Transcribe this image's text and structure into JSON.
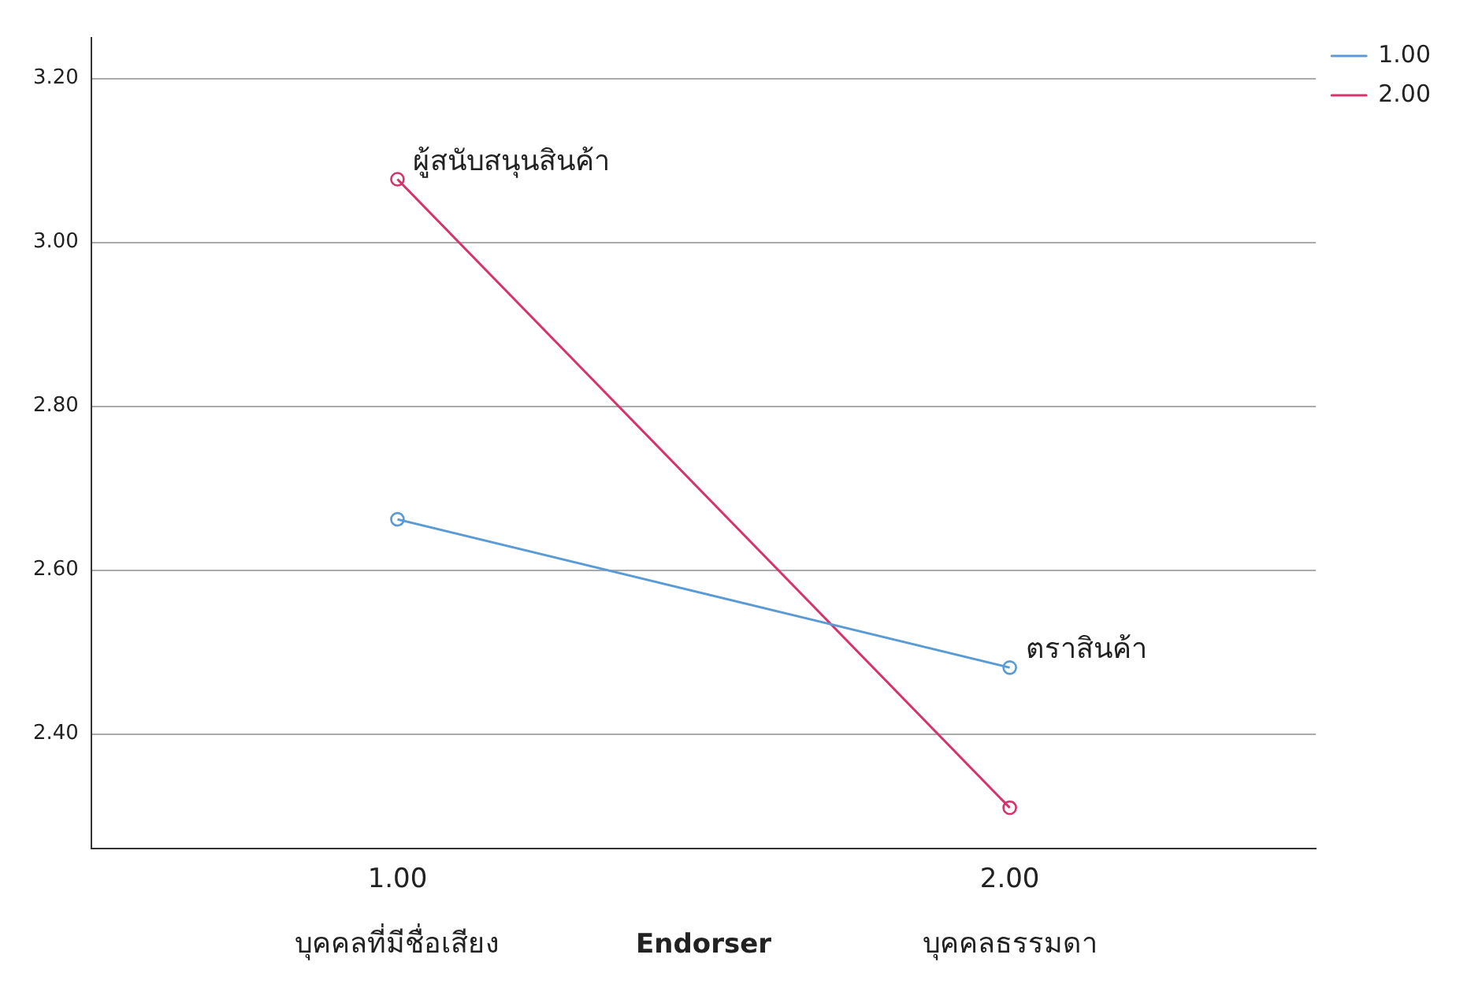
{
  "chart_data": {
    "type": "line",
    "xlabel": "Endorser",
    "categories": [
      "1.00",
      "2.00"
    ],
    "series": [
      {
        "name": "1.00",
        "color": "#5b9bd5",
        "values": [
          2.662,
          2.481
        ]
      },
      {
        "name": "2.00",
        "color": "#d6336c",
        "values": [
          3.077,
          2.31
        ]
      }
    ],
    "ylim": [
      2.26,
      3.25
    ],
    "yticks": [
      {
        "value": 2.4,
        "label": "2.40"
      },
      {
        "value": 2.6,
        "label": "2.60"
      },
      {
        "value": 2.8,
        "label": "2.80"
      },
      {
        "value": 3.0,
        "label": "3.00"
      },
      {
        "value": 3.2,
        "label": "3.20"
      }
    ],
    "grid": "y",
    "legend": "top right",
    "marker": "circle",
    "line_style": "solid",
    "annotations": [
      "บุคคลที่มีชื่อเสียง",
      "บุคคลธรรมดา",
      {
        "text": "ผู้สนับสนุนสินค้า",
        "x": "1.00",
        "y": 3.077
      },
      {
        "text": "ตราสินค้า",
        "x": "2.00",
        "y": 2.481
      }
    ]
  }
}
